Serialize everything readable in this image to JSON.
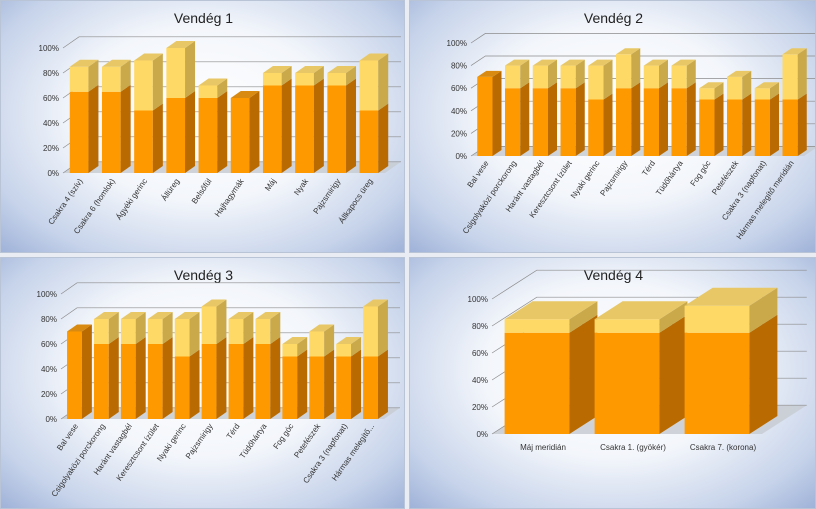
{
  "colors": {
    "base": "#f39c12",
    "base_front": "#ff9900",
    "base_side": "#b96a00",
    "base_top": "#d98a10",
    "extra_front": "#ffd966",
    "extra_side": "#c9a94a",
    "extra_top": "#e8c766"
  },
  "chart_data": [
    {
      "type": "bar",
      "stacked": true,
      "title": "Vendég 1",
      "ylim": [
        0,
        100
      ],
      "yticks": [
        "0%",
        "20%",
        "40%",
        "60%",
        "80%",
        "100%"
      ],
      "categories": [
        "Csakra 4 (szív)",
        "Csakra 6 (homlok)",
        "Ágyéki gerinc",
        "Állüreg",
        "Belsőfül",
        "Hajhagymák",
        "Máj",
        "Nyak",
        "Pajzsmirigy",
        "Állkapocs üreg"
      ],
      "series": [
        {
          "values": [
            65,
            65,
            50,
            60,
            60,
            60,
            70,
            70,
            70,
            50
          ]
        },
        {
          "values": [
            20,
            20,
            40,
            40,
            10,
            0,
            10,
            10,
            10,
            40
          ]
        }
      ]
    },
    {
      "type": "bar",
      "stacked": true,
      "title": "Vendég 2",
      "ylim": [
        0,
        100
      ],
      "yticks": [
        "0%",
        "20%",
        "40%",
        "60%",
        "80%",
        "100%"
      ],
      "categories": [
        "Bal vese",
        "Csigolyaközi porckorong",
        "Haránt vastagbél",
        "Keresztcsont ízület",
        "Nyaki gerinc",
        "Pajzsmirigy",
        "Térd",
        "Tüdőhártya",
        "Fog góc",
        "Petefészek",
        "Csakra 3 (napfonat)",
        "Hármas melegítő meridián"
      ],
      "series": [
        {
          "values": [
            70,
            60,
            60,
            60,
            50,
            60,
            60,
            60,
            50,
            50,
            50,
            50
          ]
        },
        {
          "values": [
            0,
            20,
            20,
            20,
            30,
            30,
            20,
            20,
            10,
            20,
            10,
            40
          ]
        }
      ]
    },
    {
      "type": "bar",
      "stacked": true,
      "title": "Vendég 3",
      "ylim": [
        0,
        100
      ],
      "yticks": [
        "0%",
        "20%",
        "40%",
        "60%",
        "80%",
        "100%"
      ],
      "categories": [
        "Bal vese",
        "Csigolyaközi porckorong",
        "Haránt vastagbél",
        "Keresztcsont ízület",
        "Nyaki gerinc",
        "Pajzsmirigy",
        "Térd",
        "Tüdőhártya",
        "Fog góc",
        "Petefészek",
        "Csakra 3 (napfonat)",
        "Hármas melegítő..."
      ],
      "series": [
        {
          "values": [
            70,
            60,
            60,
            60,
            50,
            60,
            60,
            60,
            50,
            50,
            50,
            50
          ]
        },
        {
          "values": [
            0,
            20,
            20,
            20,
            30,
            30,
            20,
            20,
            10,
            20,
            10,
            40
          ]
        }
      ]
    },
    {
      "type": "bar",
      "stacked": true,
      "title": "Vendég 4",
      "ylim": [
        0,
        100
      ],
      "yticks": [
        "0%",
        "20%",
        "40%",
        "60%",
        "80%",
        "100%"
      ],
      "categories": [
        "Máj meridián",
        "Csakra 1. (gyökér)",
        "Csakra 7. (korona)"
      ],
      "series": [
        {
          "values": [
            75,
            75,
            75
          ]
        },
        {
          "values": [
            10,
            10,
            20
          ]
        }
      ]
    }
  ]
}
